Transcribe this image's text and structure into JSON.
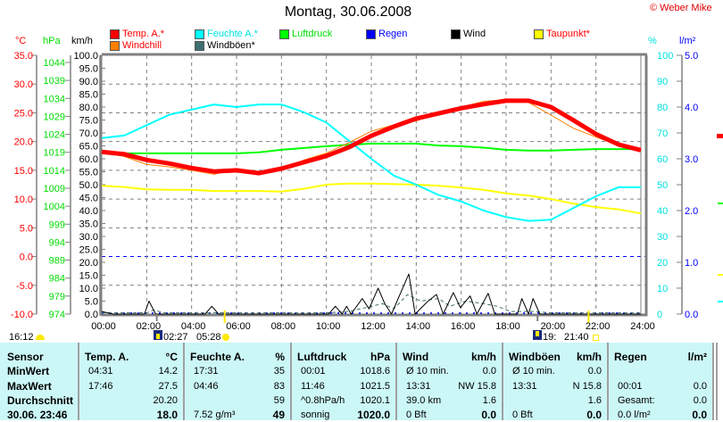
{
  "header": {
    "title": "Montag, 30.06.2008",
    "copyright": "© Weber Mike"
  },
  "legend": [
    {
      "label": "Temp. A.*",
      "color": "#ff0000",
      "text_color": "#ff0000"
    },
    {
      "label": "Feuchte A.*",
      "color": "#00ffff",
      "text_color": "#00e0e0"
    },
    {
      "label": "Luftdruck",
      "color": "#00ff00",
      "text_color": "#00dd00"
    },
    {
      "label": "Regen",
      "color": "#0000ff",
      "text_color": "#0000ff"
    },
    {
      "label": "Wind",
      "color": "#000000",
      "text_color": "#000000"
    },
    {
      "label": "Taupunkt*",
      "color": "#ffff00",
      "text_color": "#ff0000"
    },
    {
      "label": "Windchill",
      "color": "#ff8000",
      "text_color": "#ff0000"
    },
    {
      "label": "Windböen*",
      "color": "#3f6f6f",
      "text_color": "#000000"
    }
  ],
  "units": {
    "temp": "°C",
    "pressure": "hPa",
    "wind": "km/h",
    "humidity": "%",
    "rain": "l/m²"
  },
  "chart_data": {
    "type": "line",
    "x_range": [
      0,
      24
    ],
    "x_ticks": [
      "00:00",
      "02:00",
      "04:00",
      "06:00",
      "08:00",
      "10:00",
      "12:00",
      "14:00",
      "16:00",
      "18:00",
      "20:00",
      "22:00",
      "24:00"
    ],
    "axes": {
      "temp": {
        "range": [
          -10,
          35
        ],
        "ticks": [
          "35.0",
          "30.0",
          "25.0",
          "20.0",
          "15.0",
          "10.0",
          "5.0",
          "0.0",
          "-5.0",
          "-10.0"
        ]
      },
      "pressure": {
        "range": [
          974,
          1044
        ],
        "ticks": [
          "1044",
          "1039",
          "1034",
          "1029",
          "1024",
          "1019",
          "1014",
          "1009",
          "1004",
          "999",
          "994",
          "989",
          "984",
          "979",
          "974"
        ]
      },
      "wind": {
        "range": [
          0,
          100
        ],
        "ticks": [
          "100.0",
          "95.0",
          "90.0",
          "85.0",
          "80.0",
          "75.0",
          "70.0",
          "65.0",
          "60.0",
          "55.0",
          "50.0",
          "45.0",
          "40.0",
          "35.0",
          "30.0",
          "25.0",
          "20.0",
          "15.0",
          "10.0",
          "5.0",
          "0.0"
        ]
      },
      "humidity": {
        "range": [
          0,
          100
        ],
        "ticks": [
          "100",
          "90",
          "80",
          "70",
          "60",
          "50",
          "40",
          "30",
          "20",
          "10",
          "0"
        ]
      },
      "rain": {
        "range": [
          0,
          5
        ],
        "ticks": [
          "5.0",
          "4.0",
          "3.0",
          "2.0",
          "1.0",
          "0.0"
        ]
      }
    },
    "hours": [
      0,
      1,
      2,
      3,
      4,
      5,
      6,
      7,
      8,
      9,
      10,
      11,
      12,
      13,
      14,
      15,
      16,
      17,
      18,
      19,
      20,
      21,
      22,
      23,
      24
    ],
    "series": [
      {
        "name": "Temp. A.",
        "axis": "temp",
        "color": "#ff0000",
        "values": [
          18.2,
          17.8,
          16.8,
          16.2,
          15.4,
          14.8,
          15.0,
          14.5,
          15.3,
          16.4,
          17.5,
          19.0,
          21.0,
          22.6,
          24.0,
          24.9,
          25.8,
          26.5,
          27.1,
          27.1,
          26.0,
          23.7,
          21.3,
          19.5,
          18.5
        ]
      },
      {
        "name": "Windchill",
        "axis": "temp",
        "color": "#ff8000",
        "values": [
          18.2,
          17.4,
          16.0,
          15.6,
          15.0,
          14.3,
          15.2,
          14.4,
          15.1,
          16.8,
          18.0,
          19.8,
          21.8,
          22.9,
          23.6,
          25.0,
          26.0,
          27.0,
          27.3,
          26.8,
          24.6,
          22.3,
          20.8,
          19.3,
          18.2
        ]
      },
      {
        "name": "Feuchte A.",
        "axis": "humidity",
        "color": "#00ffff",
        "values": [
          68,
          69,
          73,
          77,
          79,
          81,
          80,
          81,
          81,
          78,
          74,
          67,
          60,
          53.5,
          50,
          46,
          43.5,
          40,
          37.5,
          36,
          36.5,
          41,
          45.5,
          49,
          49
        ]
      },
      {
        "name": "Luftdruck",
        "axis": "pressure",
        "color": "#00ff00",
        "values": [
          1018.9,
          1018.7,
          1018.7,
          1018.7,
          1018.7,
          1018.7,
          1018.7,
          1019.0,
          1019.7,
          1020.2,
          1020.7,
          1021.1,
          1021.4,
          1021.4,
          1021.4,
          1020.9,
          1020.7,
          1020.3,
          1019.7,
          1019.5,
          1019.5,
          1019.7,
          1019.9,
          1019.9,
          1019.9
        ]
      },
      {
        "name": "Taupunkt",
        "axis": "temp",
        "color": "#ffff00",
        "values": [
          12.3,
          12.1,
          11.7,
          11.6,
          11.6,
          11.4,
          11.4,
          11.4,
          11.3,
          11.8,
          12.5,
          12.7,
          12.7,
          12.6,
          12.5,
          12.3,
          12.0,
          11.6,
          11.0,
          10.6,
          10.0,
          9.2,
          8.6,
          8.2,
          7.5
        ]
      },
      {
        "name": "Wind",
        "axis": "wind",
        "color": "#000000",
        "points": [
          [
            0,
            1
          ],
          [
            0.5,
            0
          ],
          [
            1.9,
            0
          ],
          [
            2.1,
            5
          ],
          [
            2.4,
            0
          ],
          [
            4.6,
            0
          ],
          [
            4.9,
            3
          ],
          [
            5.2,
            0
          ],
          [
            10.1,
            0
          ],
          [
            10.4,
            3
          ],
          [
            10.7,
            0
          ],
          [
            10.9,
            3
          ],
          [
            11.1,
            0
          ],
          [
            11.6,
            6
          ],
          [
            11.9,
            2
          ],
          [
            12.3,
            10
          ],
          [
            12.6,
            4
          ],
          [
            12.9,
            0
          ],
          [
            13.67,
            15.5
          ],
          [
            13.95,
            0
          ],
          [
            14.5,
            4.8
          ],
          [
            14.9,
            7.6
          ],
          [
            15.2,
            0
          ],
          [
            15.65,
            8.3
          ],
          [
            15.96,
            2.5
          ],
          [
            16.4,
            7
          ],
          [
            16.7,
            0
          ],
          [
            17.2,
            8
          ],
          [
            17.5,
            0
          ],
          [
            18.5,
            0
          ],
          [
            18.7,
            6
          ],
          [
            19.0,
            0
          ],
          [
            19.2,
            6
          ],
          [
            19.5,
            0
          ],
          [
            24,
            0
          ]
        ]
      },
      {
        "name": "Windböen",
        "axis": "wind",
        "color": "#3f6f6f",
        "points": [
          [
            0,
            0.5
          ],
          [
            2,
            0.5
          ],
          [
            2.3,
            1.5
          ],
          [
            2.8,
            0.5
          ],
          [
            10,
            0.5
          ],
          [
            11,
            1
          ],
          [
            12,
            3
          ],
          [
            12.5,
            4
          ],
          [
            13,
            2
          ],
          [
            13.6,
            7.5
          ],
          [
            14.2,
            5
          ],
          [
            15,
            6
          ],
          [
            15.5,
            3
          ],
          [
            16.2,
            5
          ],
          [
            17,
            4
          ],
          [
            17.6,
            3
          ],
          [
            18.2,
            1
          ],
          [
            19.2,
            1
          ],
          [
            20,
            0.5
          ],
          [
            24,
            0.5
          ]
        ]
      },
      {
        "name": "Regen",
        "axis": "rain",
        "color": "#0000ff",
        "points": [
          [
            0,
            0
          ],
          [
            24,
            0
          ]
        ]
      }
    ]
  },
  "bottom_bar": {
    "time": "16:12",
    "moon_rise": "02:27",
    "sunrise": "05:28",
    "moon_set": "19:",
    "sunset": "21:40"
  },
  "table": {
    "sensor_col": {
      "header": "Sensor",
      "rows": [
        "MinWert",
        "MaxWert",
        "Durchschnitt",
        "30.06. 23:46"
      ]
    },
    "columns": [
      {
        "header": [
          "Temp. A.",
          "°C"
        ],
        "rows": [
          [
            "04:31",
            "14.2"
          ],
          [
            "17:46",
            "27.5"
          ],
          [
            "",
            "20.20"
          ],
          [
            "",
            "18.0"
          ]
        ]
      },
      {
        "header": [
          "Feuchte A.",
          "%"
        ],
        "rows": [
          [
            "17:31",
            "35"
          ],
          [
            "04:46",
            "83"
          ],
          [
            "",
            "59"
          ],
          [
            "7.52 g/m³",
            "49"
          ]
        ]
      },
      {
        "header": [
          "Luftdruck",
          "hPa"
        ],
        "rows": [
          [
            "00:01",
            "1018.6"
          ],
          [
            "11:46",
            "1021.5"
          ],
          [
            "^0.8hPa/h",
            "1020.1"
          ],
          [
            "sonnig",
            "1020.0"
          ]
        ]
      },
      {
        "header": [
          "Wind",
          "km/h"
        ],
        "rows": [
          [
            "Ø 10 min.",
            "0.0"
          ],
          [
            "13:31",
            "NW 15.8"
          ],
          [
            "39.0 km",
            "1.6"
          ],
          [
            "0 Bft",
            "0.0"
          ]
        ]
      },
      {
        "header": [
          "Windböen",
          "km/h"
        ],
        "rows": [
          [
            "Ø 10 min.",
            "0.0"
          ],
          [
            "13:31",
            "N 15.8"
          ],
          [
            "",
            "1.6"
          ],
          [
            "0 Bft",
            "0.0"
          ]
        ]
      },
      {
        "header": [
          "Regen",
          "l/m²"
        ],
        "rows": [
          [
            "",
            ""
          ],
          [
            "00:01",
            "0.0"
          ],
          [
            "Gesamt:",
            "0.0"
          ],
          [
            "0.0 l/m²",
            "0.0"
          ]
        ]
      }
    ]
  }
}
